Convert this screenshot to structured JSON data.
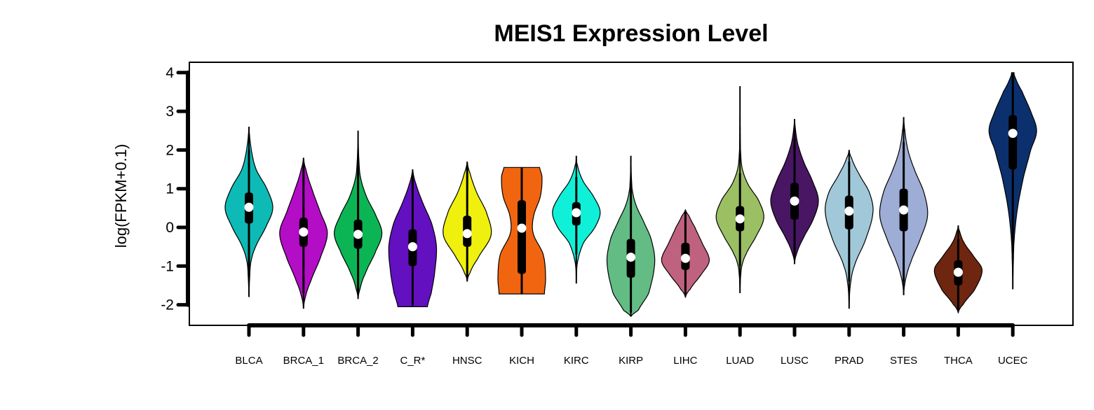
{
  "chart_data": {
    "type": "violin",
    "title": "MEIS1 Expression Level",
    "xlabel": "",
    "ylabel": "log(FPKM+0.1)",
    "ylim": [
      -2.55,
      4.25
    ],
    "yticks": [
      -2,
      -1,
      0,
      1,
      2,
      3,
      4
    ],
    "categories": [
      "BLCA",
      "BRCA_1",
      "BRCA_2",
      "C_R*",
      "HNSC",
      "KICH",
      "KIRC",
      "KIRP",
      "LIHC",
      "LUAD",
      "LUSC",
      "PRAD",
      "STES",
      "THCA",
      "UCEC"
    ],
    "series": [
      {
        "category": "BLCA",
        "color": "#0DBAB5",
        "min": -1.8,
        "max": 2.6,
        "q1": 0.1,
        "median": 0.52,
        "q3": 0.9,
        "whisker_low": -1.3,
        "whisker_high": 2.0,
        "density": [
          [
            -1.8,
            0.0
          ],
          [
            -1.3,
            0.03
          ],
          [
            -0.9,
            0.08
          ],
          [
            -0.5,
            0.28
          ],
          [
            0.0,
            0.7
          ],
          [
            0.5,
            1.0
          ],
          [
            1.0,
            0.75
          ],
          [
            1.5,
            0.3
          ],
          [
            2.0,
            0.1
          ],
          [
            2.6,
            0.0
          ]
        ]
      },
      {
        "category": "BRCA_1",
        "color": "#B30DC5",
        "min": -2.1,
        "max": 1.8,
        "q1": -0.5,
        "median": -0.12,
        "q3": 0.25,
        "whisker_low": -1.7,
        "whisker_high": 1.6,
        "density": [
          [
            -2.1,
            0.0
          ],
          [
            -1.8,
            0.08
          ],
          [
            -1.4,
            0.3
          ],
          [
            -0.8,
            0.7
          ],
          [
            -0.15,
            1.0
          ],
          [
            0.4,
            0.7
          ],
          [
            1.0,
            0.35
          ],
          [
            1.5,
            0.1
          ],
          [
            1.8,
            0.0
          ]
        ]
      },
      {
        "category": "BRCA_2",
        "color": "#0CB554",
        "min": -1.85,
        "max": 2.5,
        "q1": -0.55,
        "median": -0.18,
        "q3": 0.2,
        "whisker_low": -1.7,
        "whisker_high": 1.8,
        "density": [
          [
            -1.85,
            0.0
          ],
          [
            -1.6,
            0.08
          ],
          [
            -1.2,
            0.3
          ],
          [
            -0.6,
            0.75
          ],
          [
            -0.15,
            1.0
          ],
          [
            0.3,
            0.75
          ],
          [
            0.8,
            0.35
          ],
          [
            1.3,
            0.1
          ],
          [
            1.8,
            0.03
          ],
          [
            2.5,
            0.0
          ]
        ]
      },
      {
        "category": "C_R*",
        "color": "#6310C0",
        "min": -2.05,
        "max": 1.5,
        "q1": -1.0,
        "median": -0.5,
        "q3": -0.05,
        "whisker_low": -2.0,
        "whisker_high": 1.4,
        "density": [
          [
            -2.05,
            0.62
          ],
          [
            -1.7,
            0.78
          ],
          [
            -1.2,
            0.92
          ],
          [
            -0.5,
            1.0
          ],
          [
            0.1,
            0.8
          ],
          [
            0.6,
            0.45
          ],
          [
            1.1,
            0.15
          ],
          [
            1.5,
            0.0
          ]
        ]
      },
      {
        "category": "HNSC",
        "color": "#F0F00E",
        "min": -1.4,
        "max": 1.7,
        "q1": -0.5,
        "median": -0.16,
        "q3": 0.3,
        "whisker_low": -1.3,
        "whisker_high": 1.6,
        "density": [
          [
            -1.4,
            0.0
          ],
          [
            -1.2,
            0.1
          ],
          [
            -0.8,
            0.45
          ],
          [
            -0.2,
            1.0
          ],
          [
            0.4,
            0.8
          ],
          [
            0.9,
            0.4
          ],
          [
            1.4,
            0.12
          ],
          [
            1.7,
            0.0
          ]
        ]
      },
      {
        "category": "KICH",
        "color": "#F26510",
        "min": -1.72,
        "max": 1.55,
        "q1": -1.2,
        "median": -0.02,
        "q3": 0.7,
        "whisker_low": -1.72,
        "whisker_high": 1.55,
        "density": [
          [
            -1.72,
            0.95
          ],
          [
            -1.3,
            1.0
          ],
          [
            -0.7,
            0.9
          ],
          [
            -0.15,
            0.48
          ],
          [
            0.3,
            0.5
          ],
          [
            0.8,
            0.78
          ],
          [
            1.3,
            0.85
          ],
          [
            1.55,
            0.75
          ]
        ]
      },
      {
        "category": "KIRC",
        "color": "#10F0D8",
        "min": -1.45,
        "max": 1.85,
        "q1": 0.05,
        "median": 0.38,
        "q3": 0.65,
        "whisker_low": -0.7,
        "whisker_high": 1.3,
        "density": [
          [
            -1.45,
            0.0
          ],
          [
            -0.9,
            0.05
          ],
          [
            -0.4,
            0.3
          ],
          [
            0.0,
            0.78
          ],
          [
            0.4,
            1.0
          ],
          [
            0.8,
            0.72
          ],
          [
            1.2,
            0.28
          ],
          [
            1.6,
            0.05
          ],
          [
            1.85,
            0.0
          ]
        ]
      },
      {
        "category": "KIRP",
        "color": "#62BC83",
        "min": -2.3,
        "max": 1.85,
        "q1": -1.3,
        "median": -0.77,
        "q3": -0.3,
        "whisker_low": -2.2,
        "whisker_high": 1.0,
        "density": [
          [
            -2.3,
            0.0
          ],
          [
            -2.15,
            0.3
          ],
          [
            -1.7,
            0.75
          ],
          [
            -0.9,
            1.0
          ],
          [
            -0.3,
            0.85
          ],
          [
            0.2,
            0.5
          ],
          [
            0.6,
            0.2
          ],
          [
            1.0,
            0.05
          ],
          [
            1.85,
            0.0
          ]
        ]
      },
      {
        "category": "LIHC",
        "color": "#BF627F",
        "min": -1.8,
        "max": 0.45,
        "q1": -1.1,
        "median": -0.8,
        "q3": -0.4,
        "whisker_low": -1.7,
        "whisker_high": 0.4,
        "density": [
          [
            -1.8,
            0.0
          ],
          [
            -1.6,
            0.2
          ],
          [
            -1.2,
            0.68
          ],
          [
            -0.85,
            1.0
          ],
          [
            -0.4,
            0.7
          ],
          [
            0.0,
            0.4
          ],
          [
            0.3,
            0.15
          ],
          [
            0.45,
            0.0
          ]
        ]
      },
      {
        "category": "LUAD",
        "color": "#9BBF63",
        "min": -1.7,
        "max": 3.65,
        "q1": -0.1,
        "median": 0.22,
        "q3": 0.55,
        "whisker_low": -1.0,
        "whisker_high": 1.4,
        "density": [
          [
            -1.7,
            0.0
          ],
          [
            -1.05,
            0.06
          ],
          [
            -0.7,
            0.25
          ],
          [
            -0.2,
            0.7
          ],
          [
            0.25,
            1.0
          ],
          [
            0.7,
            0.78
          ],
          [
            1.1,
            0.35
          ],
          [
            1.5,
            0.1
          ],
          [
            2.0,
            0.02
          ],
          [
            3.65,
            0.0
          ]
        ]
      },
      {
        "category": "LUSC",
        "color": "#481663",
        "min": -0.95,
        "max": 2.8,
        "q1": 0.2,
        "median": 0.68,
        "q3": 1.15,
        "whisker_low": -0.7,
        "whisker_high": 2.3,
        "density": [
          [
            -0.95,
            0.0
          ],
          [
            -0.7,
            0.08
          ],
          [
            -0.3,
            0.35
          ],
          [
            0.2,
            0.78
          ],
          [
            0.7,
            1.0
          ],
          [
            1.2,
            0.75
          ],
          [
            1.7,
            0.38
          ],
          [
            2.2,
            0.12
          ],
          [
            2.8,
            0.0
          ]
        ]
      },
      {
        "category": "PRAD",
        "color": "#A0C8D8",
        "min": -2.1,
        "max": 2.0,
        "q1": -0.05,
        "median": 0.42,
        "q3": 0.82,
        "whisker_low": -1.4,
        "whisker_high": 1.7,
        "density": [
          [
            -2.1,
            0.0
          ],
          [
            -1.5,
            0.05
          ],
          [
            -1.0,
            0.22
          ],
          [
            -0.3,
            0.7
          ],
          [
            0.4,
            1.0
          ],
          [
            0.9,
            0.85
          ],
          [
            1.4,
            0.4
          ],
          [
            1.8,
            0.1
          ],
          [
            2.0,
            0.0
          ]
        ]
      },
      {
        "category": "STES",
        "color": "#9EADD5",
        "min": -1.75,
        "max": 2.85,
        "q1": -0.1,
        "median": 0.45,
        "q3": 1.0,
        "whisker_low": -1.4,
        "whisker_high": 2.2,
        "density": [
          [
            -1.75,
            0.0
          ],
          [
            -1.35,
            0.08
          ],
          [
            -0.9,
            0.3
          ],
          [
            -0.3,
            0.7
          ],
          [
            0.3,
            1.0
          ],
          [
            0.9,
            0.85
          ],
          [
            1.5,
            0.45
          ],
          [
            2.0,
            0.18
          ],
          [
            2.5,
            0.05
          ],
          [
            2.85,
            0.0
          ]
        ]
      },
      {
        "category": "THCA",
        "color": "#6E2610",
        "min": -2.2,
        "max": 0.05,
        "q1": -1.5,
        "median": -1.16,
        "q3": -0.85,
        "whisker_low": -2.1,
        "whisker_high": -0.3,
        "density": [
          [
            -2.2,
            0.0
          ],
          [
            -2.0,
            0.2
          ],
          [
            -1.6,
            0.7
          ],
          [
            -1.1,
            1.0
          ],
          [
            -0.75,
            0.65
          ],
          [
            -0.4,
            0.25
          ],
          [
            -0.1,
            0.06
          ],
          [
            0.05,
            0.0
          ]
        ]
      },
      {
        "category": "UCEC",
        "color": "#0C306D",
        "min": -1.6,
        "max": 4.0,
        "q1": 1.5,
        "median": 2.43,
        "q3": 2.9,
        "whisker_low": -0.6,
        "whisker_high": 4.0,
        "density": [
          [
            -1.6,
            0.0
          ],
          [
            -1.0,
            0.02
          ],
          [
            -0.3,
            0.06
          ],
          [
            0.5,
            0.2
          ],
          [
            1.3,
            0.45
          ],
          [
            2.0,
            0.75
          ],
          [
            2.5,
            1.0
          ],
          [
            3.0,
            0.75
          ],
          [
            3.5,
            0.4
          ],
          [
            3.85,
            0.12
          ],
          [
            4.0,
            0.05
          ]
        ]
      }
    ]
  }
}
